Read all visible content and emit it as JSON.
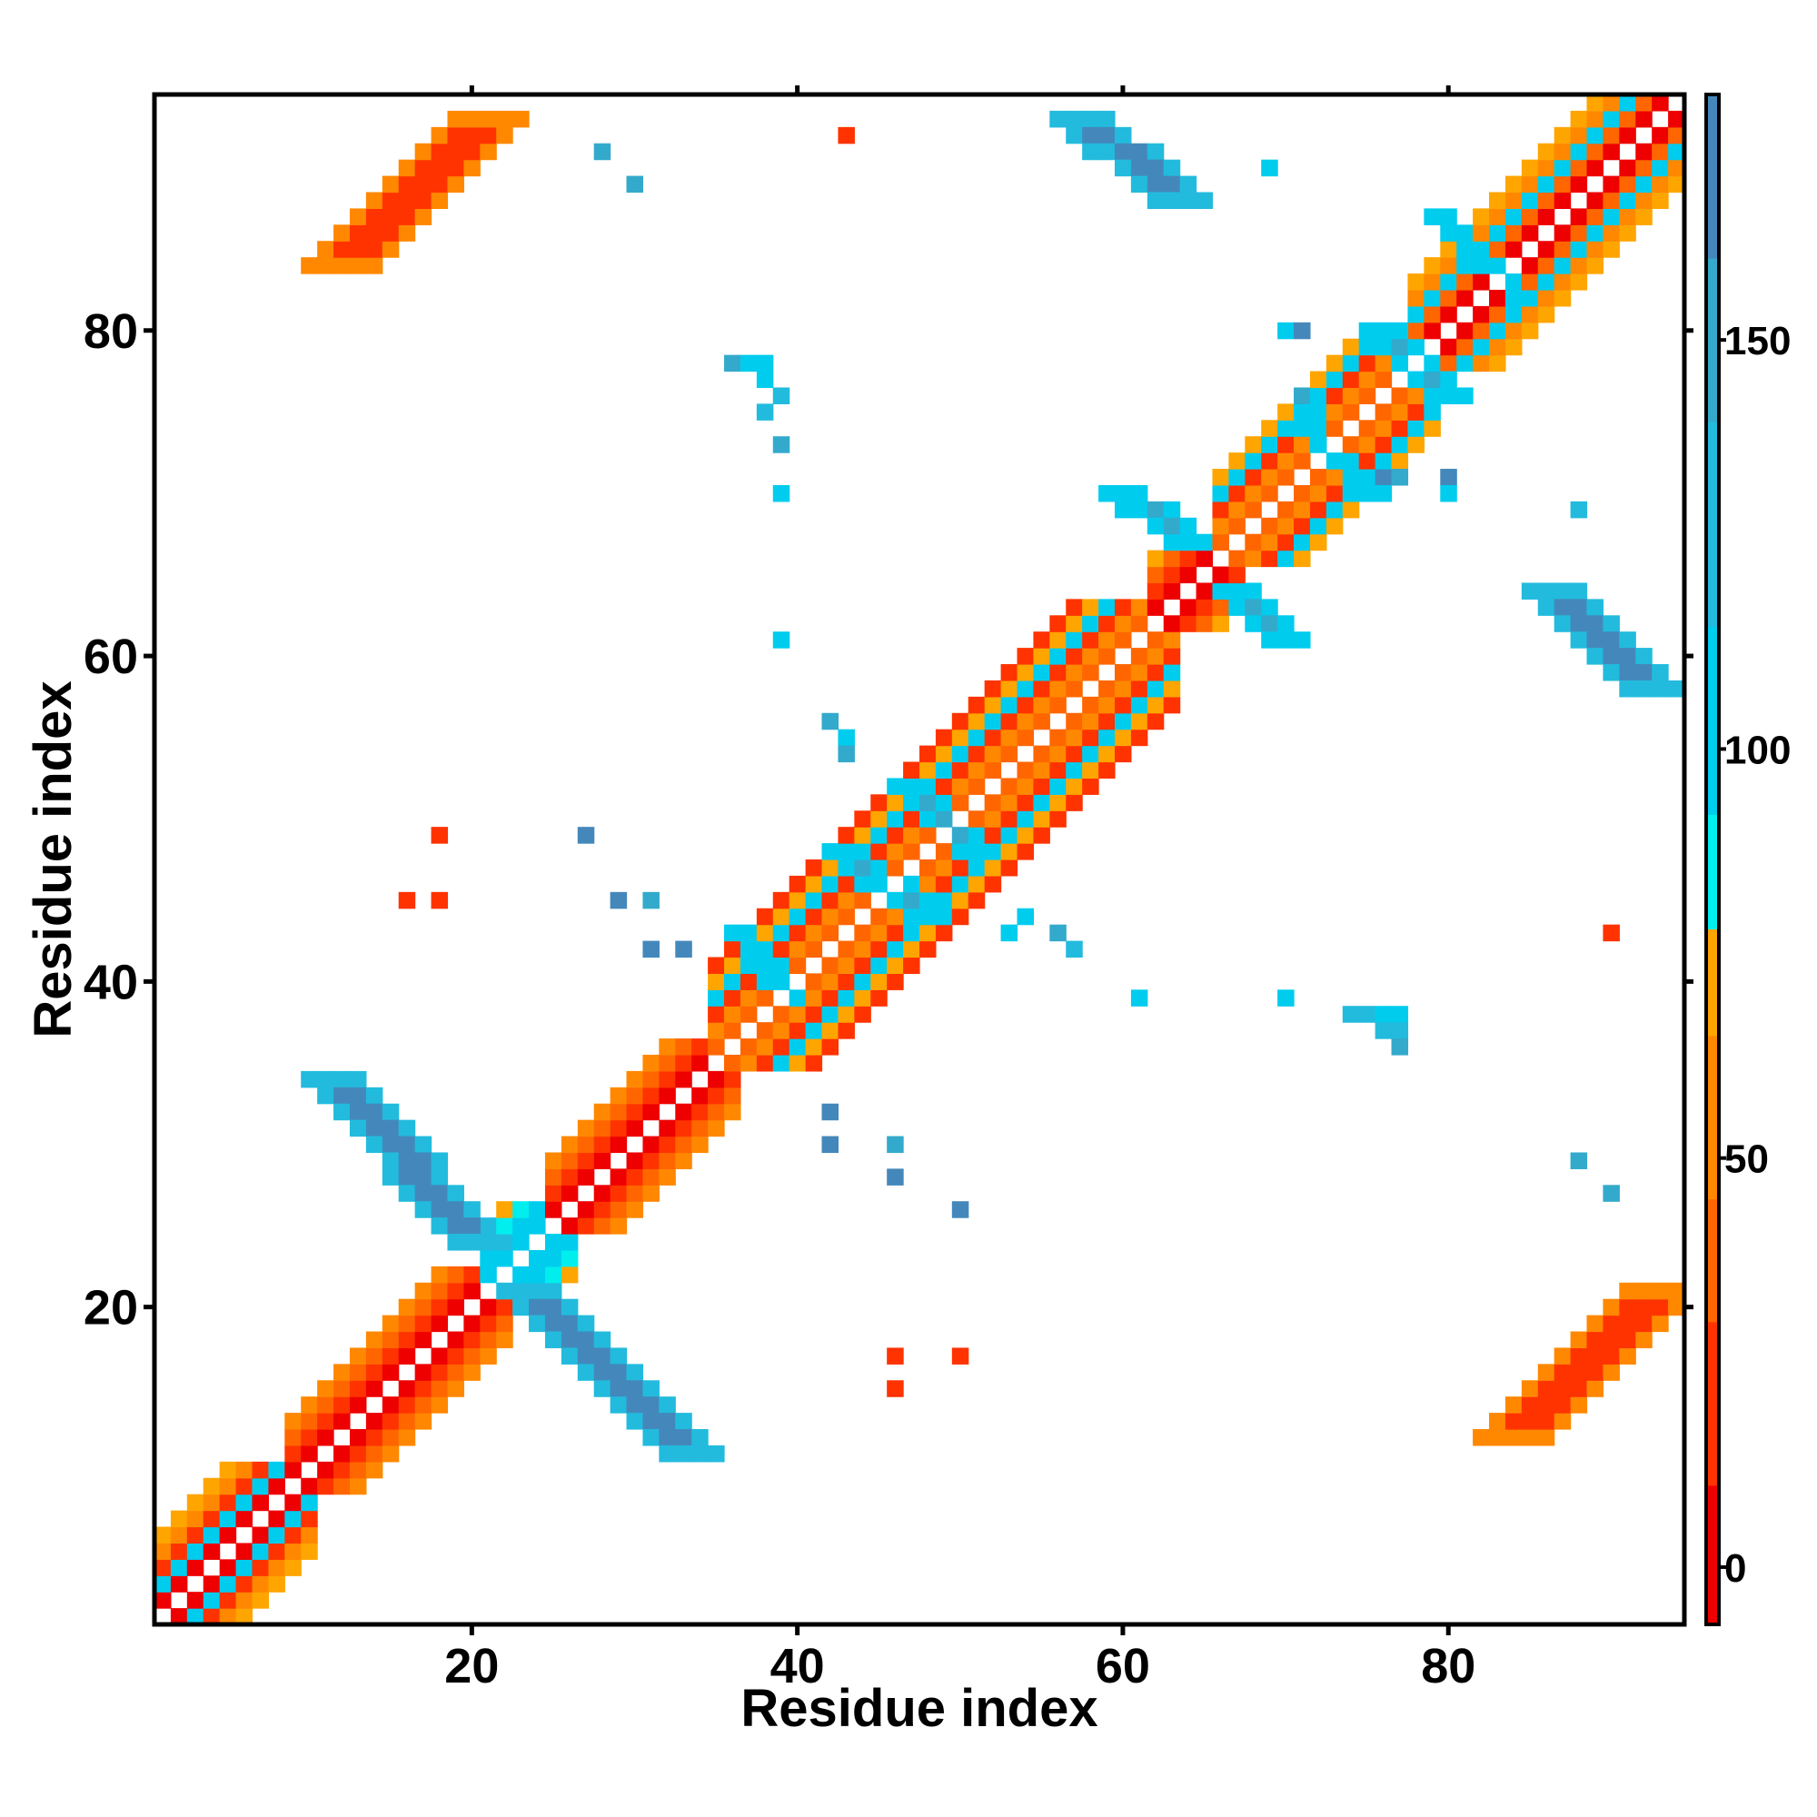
{
  "chart_data": {
    "type": "heatmap",
    "title": "",
    "xlabel": "Residue index",
    "ylabel": "Residue index",
    "xlim": [
      0.5,
      94.5
    ],
    "ylim": [
      0.5,
      94.5
    ],
    "x_ticks": [
      20,
      40,
      60,
      80
    ],
    "y_ticks": [
      20,
      40,
      60,
      80
    ],
    "grid": false,
    "colorbar": {
      "range": [
        -7,
        180
      ],
      "ticks": [
        0,
        50,
        100,
        150
      ],
      "bands": [
        {
          "from": -7,
          "to": 10,
          "color": "#ee0000"
        },
        {
          "from": 10,
          "to": 30,
          "color": "#ff3300"
        },
        {
          "from": 30,
          "to": 45,
          "color": "#ff6600"
        },
        {
          "from": 45,
          "to": 65,
          "color": "#ff8800"
        },
        {
          "from": 65,
          "to": 78,
          "color": "#ffa500"
        },
        {
          "from": 78,
          "to": 92,
          "color": "#00eeee"
        },
        {
          "from": 92,
          "to": 115,
          "color": "#00ccee"
        },
        {
          "from": 115,
          "to": 140,
          "color": "#22bbdd"
        },
        {
          "from": 140,
          "to": 160,
          "color": "#33aacc"
        },
        {
          "from": 160,
          "to": 180,
          "color": "#4488bb"
        }
      ]
    },
    "diagonal_segments": [
      {
        "from": 1,
        "to": 9,
        "values": [
          3,
          100,
          12,
          55,
          70
        ]
      },
      {
        "from": 9,
        "to": 21,
        "values": [
          3,
          18,
          34,
          50
        ]
      },
      {
        "from": 21,
        "to": 25,
        "values": [
          100,
          92,
          78,
          70
        ]
      },
      {
        "from": 25,
        "to": 35,
        "values": [
          3,
          22,
          40,
          60
        ]
      },
      {
        "from": 35,
        "to": 62,
        "values": [
          40,
          60,
          28,
          100,
          72,
          18
        ]
      },
      {
        "from": 62,
        "to": 66,
        "values": [
          3,
          22,
          40,
          70
        ]
      },
      {
        "from": 66,
        "to": 78,
        "values": [
          40,
          60,
          28,
          100,
          72
        ]
      },
      {
        "from": 78,
        "to": 94,
        "values": [
          3,
          30,
          100,
          50,
          72
        ]
      }
    ],
    "stripes": [
      {
        "x0": 12,
        "y0": 84,
        "x1": 21,
        "y1": 93,
        "w": 5,
        "value": 25,
        "edge": 62
      },
      {
        "x0": 84,
        "y0": 12,
        "x1": 93,
        "y1": 21,
        "w": 5,
        "value": 25,
        "edge": 62
      },
      {
        "x0": 12,
        "y0": 34,
        "x1": 21,
        "y1": 24,
        "w": 4,
        "value": 165,
        "edge": 130
      },
      {
        "x0": 24,
        "y0": 21,
        "x1": 34,
        "y1": 11,
        "w": 4,
        "value": 165,
        "edge": 130
      },
      {
        "x0": 58,
        "y0": 93,
        "x1": 64,
        "y1": 88,
        "w": 4,
        "value": 165,
        "edge": 130
      },
      {
        "x0": 87,
        "y0": 64,
        "x1": 93,
        "y1": 58,
        "w": 4,
        "value": 165,
        "edge": 130
      },
      {
        "x0": 60,
        "y0": 70,
        "x1": 64,
        "y1": 67,
        "w": 3,
        "value": 150,
        "edge": 110
      },
      {
        "x0": 67,
        "y0": 64,
        "x1": 70,
        "y1": 61,
        "w": 3,
        "value": 150,
        "edge": 110
      },
      {
        "x0": 43,
        "y0": 48,
        "x1": 48,
        "y1": 44,
        "w": 3,
        "value": 140,
        "edge": 100
      },
      {
        "x0": 47,
        "y0": 52,
        "x1": 51,
        "y1": 48,
        "w": 3,
        "value": 140,
        "edge": 100
      },
      {
        "x0": 76,
        "y0": 80,
        "x1": 80,
        "y1": 76,
        "w": 3,
        "value": 140,
        "edge": 100
      },
      {
        "x0": 80,
        "y0": 87,
        "x1": 85,
        "y1": 82,
        "w": 2,
        "value": 120,
        "edge": 95
      },
      {
        "x0": 37,
        "y0": 43,
        "x1": 40,
        "y1": 39,
        "w": 2,
        "value": 120,
        "edge": 95
      },
      {
        "x0": 72,
        "y0": 74,
        "x1": 76,
        "y1": 70,
        "w": 2,
        "value": 120,
        "edge": 95
      }
    ],
    "cells": [
      [
        38,
        77,
        110
      ],
      [
        39,
        76,
        130
      ],
      [
        38,
        75,
        120
      ],
      [
        39,
        73,
        150
      ],
      [
        39,
        70,
        110
      ],
      [
        36,
        78,
        150
      ],
      [
        37,
        78,
        110
      ],
      [
        38,
        78,
        110
      ],
      [
        28,
        91,
        140
      ],
      [
        30,
        89,
        140
      ],
      [
        43,
        92,
        25
      ],
      [
        69,
        90,
        110
      ],
      [
        39,
        61,
        110
      ],
      [
        42,
        56,
        150
      ],
      [
        43,
        55,
        110
      ],
      [
        43,
        54,
        150
      ],
      [
        18,
        49,
        25
      ],
      [
        16,
        45,
        25
      ],
      [
        18,
        45,
        25
      ],
      [
        27,
        49,
        165
      ],
      [
        29,
        45,
        165
      ],
      [
        31,
        45,
        140
      ],
      [
        31,
        42,
        165
      ],
      [
        33,
        42,
        165
      ],
      [
        53,
        43,
        110
      ],
      [
        56,
        43,
        150
      ],
      [
        57,
        42,
        130
      ],
      [
        54,
        44,
        110
      ],
      [
        42,
        32,
        165
      ],
      [
        42,
        30,
        165
      ],
      [
        46,
        30,
        150
      ],
      [
        46,
        28,
        165
      ],
      [
        50,
        26,
        165
      ],
      [
        46,
        17,
        10
      ],
      [
        50,
        17,
        10
      ],
      [
        46,
        15,
        25
      ],
      [
        61,
        39,
        110
      ],
      [
        70,
        39,
        110
      ],
      [
        74,
        38,
        130
      ],
      [
        75,
        38,
        130
      ],
      [
        76,
        38,
        110
      ],
      [
        77,
        38,
        100
      ],
      [
        76,
        37,
        120
      ],
      [
        77,
        37,
        120
      ],
      [
        77,
        36,
        140
      ],
      [
        70,
        80,
        110
      ],
      [
        71,
        80,
        165
      ],
      [
        71,
        76,
        150
      ],
      [
        72,
        75,
        110
      ],
      [
        76,
        71,
        165
      ],
      [
        77,
        71,
        150
      ],
      [
        80,
        71,
        165
      ],
      [
        80,
        70,
        110
      ],
      [
        88,
        69,
        120
      ],
      [
        90,
        43,
        25
      ],
      [
        88,
        29,
        140
      ],
      [
        90,
        27,
        140
      ]
    ]
  }
}
